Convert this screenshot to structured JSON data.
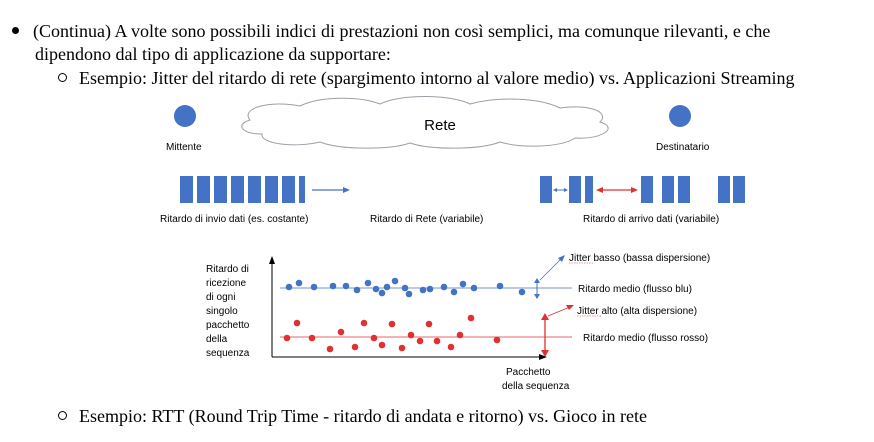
{
  "bullets": {
    "main_line1": "(Continua) A volte sono possibili indici di prestazioni non così semplici, ma comunque rilevanti, e che",
    "main_line2": "dipendono dal tipo di applicazione da supportare:",
    "sub1": "Esempio: Jitter del ritardo di rete (spargimento intorno al valore medio) vs. Applicazioni Streaming",
    "sub2": "Esempio: RTT (Round Trip Time - ritardo di andata e ritorno) vs. Gioco in rete"
  },
  "diagram": {
    "cloud_label": "Rete",
    "sender_label": "Mittente",
    "receiver_label": "Destinatario",
    "send_delay_label": "Ritardo di invio dati (es. costante)",
    "network_delay_label": "Ritardo di Rete (variabile)",
    "arrival_delay_label": "Ritardo di arrivo dati (variabile)",
    "y_axis_label": [
      "Ritardo di",
      "ricezione",
      "di ogni",
      "singolo",
      "pacchetto",
      "della",
      "sequenza"
    ],
    "x_axis_label": [
      "Pacchetto",
      "della sequenza"
    ],
    "jitter_low_label": "Jitter basso (bassa dispersione)",
    "mean_blue_label": "Ritardo medio (flusso blu)",
    "jitter_high_label": "Jitter alto (alta dispersione)",
    "mean_red_label": "Ritardo medio (flusso rosso)",
    "colors": {
      "blue": "#4472c4",
      "red": "#e03030",
      "text": "#000000"
    }
  }
}
